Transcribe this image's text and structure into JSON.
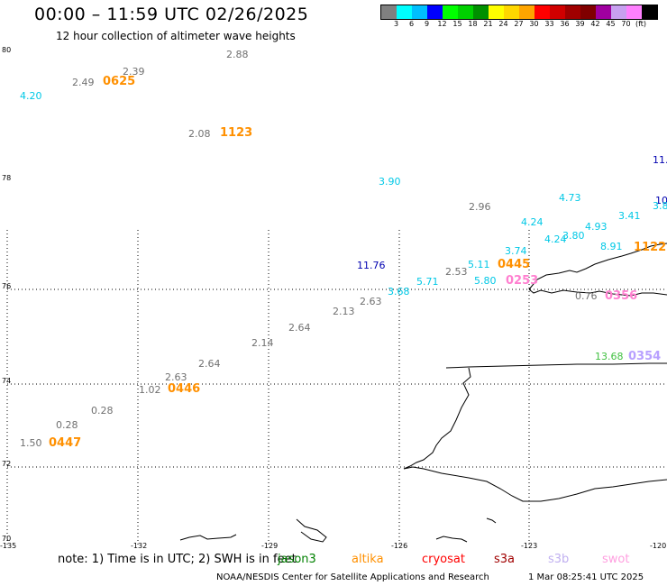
{
  "header": {
    "title": "00:00 – 11:59 UTC 02/26/2025",
    "subtitle": "12 hour collection of altimeter wave heights"
  },
  "colorbar": {
    "colors": [
      "#808080",
      "#00ffff",
      "#00bfff",
      "#0000ff",
      "#00ff00",
      "#00d000",
      "#009000",
      "#ffff00",
      "#ffd700",
      "#ffa500",
      "#ff0000",
      "#d00000",
      "#a00000",
      "#800000",
      "#a000a0",
      "#c8a0f0",
      "#ff80ff",
      "#000000"
    ],
    "ticks": [
      "3",
      "6",
      "9",
      "12",
      "15",
      "18",
      "21",
      "24",
      "27",
      "30",
      "33",
      "36",
      "39",
      "42",
      "45",
      "70"
    ],
    "unit": "(ft)"
  },
  "axes": {
    "lat_labels": [
      "80",
      "78",
      "76",
      "74",
      "72",
      "70"
    ],
    "lon_labels": [
      "-135",
      "-132",
      "-129",
      "-126",
      "-123",
      "-120"
    ]
  },
  "wave_heights": [
    {
      "text": "4.20",
      "color": "#00c8e6"
    },
    {
      "text": "2.49",
      "color": "#707070"
    },
    {
      "text": "2.39",
      "color": "#707070"
    },
    {
      "text": "2.88",
      "color": "#707070"
    },
    {
      "text": "2.08",
      "color": "#707070"
    },
    {
      "text": "11.",
      "color": "#0000b0"
    },
    {
      "text": "3.90",
      "color": "#00c8e6"
    },
    {
      "text": "2.96",
      "color": "#707070"
    },
    {
      "text": "4.73",
      "color": "#00c8e6"
    },
    {
      "text": "10",
      "color": "#0000b0"
    },
    {
      "text": "3.8",
      "color": "#00c8e6"
    },
    {
      "text": "4.24",
      "color": "#00c8e6"
    },
    {
      "text": "4.93",
      "color": "#00c8e6"
    },
    {
      "text": "3.41",
      "color": "#00c8e6"
    },
    {
      "text": "4.24",
      "color": "#00c8e6"
    },
    {
      "text": "3.80",
      "color": "#00c8e6"
    },
    {
      "text": "8.91",
      "color": "#00c8e6"
    },
    {
      "text": "3.74",
      "color": "#00c8e6"
    },
    {
      "text": "11.76",
      "color": "#0000b0"
    },
    {
      "text": "5.11",
      "color": "#00c8e6"
    },
    {
      "text": "2.53",
      "color": "#707070"
    },
    {
      "text": "5.71",
      "color": "#00c8e6"
    },
    {
      "text": "5.80",
      "color": "#00c8e6"
    },
    {
      "text": "3.68",
      "color": "#00c8e6"
    },
    {
      "text": "2.63",
      "color": "#707070"
    },
    {
      "text": "0.76",
      "color": "#707070"
    },
    {
      "text": "2.13",
      "color": "#707070"
    },
    {
      "text": "2.64",
      "color": "#707070"
    },
    {
      "text": "2.14",
      "color": "#707070"
    },
    {
      "text": "13.68",
      "color": "#40c040"
    },
    {
      "text": "2.64",
      "color": "#707070"
    },
    {
      "text": "2.63",
      "color": "#707070"
    },
    {
      "text": "1.02",
      "color": "#707070"
    },
    {
      "text": "0.28",
      "color": "#707070"
    },
    {
      "text": "0.28",
      "color": "#707070"
    },
    {
      "text": "1.50",
      "color": "#707070"
    }
  ],
  "time_labels": [
    {
      "text": "0625",
      "color": "#ff9000"
    },
    {
      "text": "1123",
      "color": "#ff9000"
    },
    {
      "text": "1122",
      "color": "#ff9000"
    },
    {
      "text": "0445",
      "color": "#ff9000"
    },
    {
      "text": "0253",
      "color": "#ff80d0"
    },
    {
      "text": "0356",
      "color": "#ff80d0"
    },
    {
      "text": "0354",
      "color": "#b8a0ff"
    },
    {
      "text": "0446",
      "color": "#ff9000"
    },
    {
      "text": "0447",
      "color": "#ff9000"
    }
  ],
  "note": "note: 1) Time is in UTC; 2) SWH is in feet",
  "satellites": [
    {
      "name": "jason3",
      "color": "#008000"
    },
    {
      "name": "altika",
      "color": "#ff9000"
    },
    {
      "name": "cryosat",
      "color": "#ff0000"
    },
    {
      "name": "s3a",
      "color": "#a00000"
    },
    {
      "name": "s3b",
      "color": "#c0b0f0"
    },
    {
      "name": "swot",
      "color": "#ffa0e0"
    }
  ],
  "footer": {
    "org": "NOAA/NESDIS Center for Satellite Applications and Research",
    "timestamp": "1 Mar 08:25:41 UTC 2025"
  }
}
